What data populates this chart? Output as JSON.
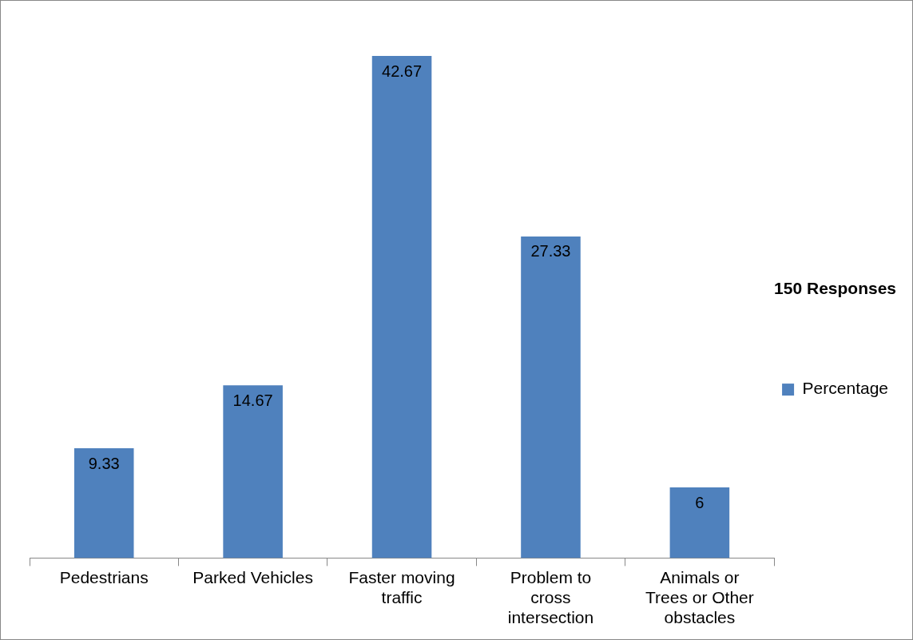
{
  "chart_data": {
    "type": "bar",
    "categories": [
      "Pedestrians",
      "Parked Vehicles",
      "Faster moving traffic",
      "Problem to cross intersection",
      "Animals or Trees or Other obstacles"
    ],
    "series": [
      {
        "name": "Percentage",
        "color": "#4f81bd",
        "values": [
          9.33,
          14.67,
          42.67,
          27.33,
          6
        ]
      }
    ],
    "legend_title": "150 Responses",
    "legend": "right",
    "data_labels": true,
    "grid": false
  }
}
